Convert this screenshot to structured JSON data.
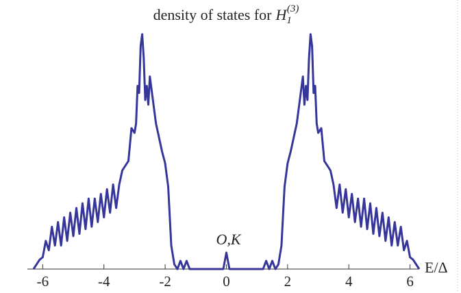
{
  "chart_data": {
    "type": "line",
    "title_parts": [
      "density of states for",
      "H",
      "1",
      "(3)"
    ],
    "x_label": "E/Δ",
    "annotation": "O,K",
    "annotation_x": 0,
    "color": "#35359a",
    "xlim": [
      -6.5,
      6.3
    ],
    "ylim": [
      0,
      1
    ],
    "xticks": [
      -6,
      -4,
      -2,
      0,
      2,
      4,
      6
    ],
    "x": [
      -6.3,
      -6.2,
      -6.1,
      -6.0,
      -5.9,
      -5.8,
      -5.7,
      -5.6,
      -5.5,
      -5.4,
      -5.3,
      -5.2,
      -5.1,
      -5.0,
      -4.9,
      -4.8,
      -4.7,
      -4.6,
      -4.5,
      -4.4,
      -4.3,
      -4.2,
      -4.1,
      -4.0,
      -3.9,
      -3.8,
      -3.7,
      -3.6,
      -3.5,
      -3.4,
      -3.3,
      -3.2,
      -3.1,
      -3.0,
      -2.95,
      -2.9,
      -2.85,
      -2.8,
      -2.75,
      -2.7,
      -2.65,
      -2.6,
      -2.55,
      -2.5,
      -2.4,
      -2.3,
      -2.2,
      -2.1,
      -2.0,
      -1.9,
      -1.8,
      -1.7,
      -1.6,
      -1.5,
      -1.4,
      -1.3,
      -1.2,
      -0.1,
      0,
      0.1,
      1.2,
      1.3,
      1.4,
      1.5,
      1.6,
      1.7,
      1.8,
      1.9,
      2.0,
      2.1,
      2.2,
      2.3,
      2.4,
      2.5,
      2.55,
      2.6,
      2.65,
      2.7,
      2.75,
      2.8,
      2.85,
      2.9,
      2.95,
      3.0,
      3.1,
      3.2,
      3.3,
      3.4,
      3.5,
      3.6,
      3.7,
      3.8,
      3.9,
      4.0,
      4.1,
      4.2,
      4.3,
      4.4,
      4.5,
      4.6,
      4.7,
      4.8,
      4.9,
      5.0,
      5.1,
      5.2,
      5.3,
      5.4,
      5.5,
      5.6,
      5.7,
      5.8,
      5.9,
      6.0,
      6.1,
      6.2,
      6.3
    ],
    "values": [
      0,
      0.02,
      0.04,
      0.05,
      0.12,
      0.08,
      0.18,
      0.1,
      0.2,
      0.1,
      0.22,
      0.12,
      0.24,
      0.14,
      0.26,
      0.15,
      0.28,
      0.17,
      0.3,
      0.18,
      0.3,
      0.2,
      0.32,
      0.22,
      0.34,
      0.24,
      0.36,
      0.26,
      0.36,
      0.42,
      0.44,
      0.46,
      0.6,
      0.58,
      0.62,
      0.78,
      0.75,
      0.95,
      1.0,
      0.9,
      0.72,
      0.78,
      0.7,
      0.82,
      0.72,
      0.62,
      0.56,
      0.5,
      0.45,
      0.35,
      0.1,
      0.02,
      0,
      0.035,
      0,
      0.035,
      0,
      0,
      0.07,
      0,
      0,
      0.035,
      0,
      0.035,
      0,
      0.02,
      0.1,
      0.35,
      0.45,
      0.5,
      0.56,
      0.62,
      0.72,
      0.82,
      0.7,
      0.78,
      0.72,
      0.9,
      1.0,
      0.95,
      0.75,
      0.78,
      0.62,
      0.58,
      0.6,
      0.46,
      0.44,
      0.42,
      0.36,
      0.26,
      0.36,
      0.24,
      0.34,
      0.22,
      0.32,
      0.2,
      0.3,
      0.18,
      0.3,
      0.17,
      0.28,
      0.15,
      0.26,
      0.14,
      0.24,
      0.12,
      0.22,
      0.1,
      0.2,
      0.1,
      0.18,
      0.08,
      0.12,
      0.05,
      0.04,
      0.02,
      0
    ]
  }
}
